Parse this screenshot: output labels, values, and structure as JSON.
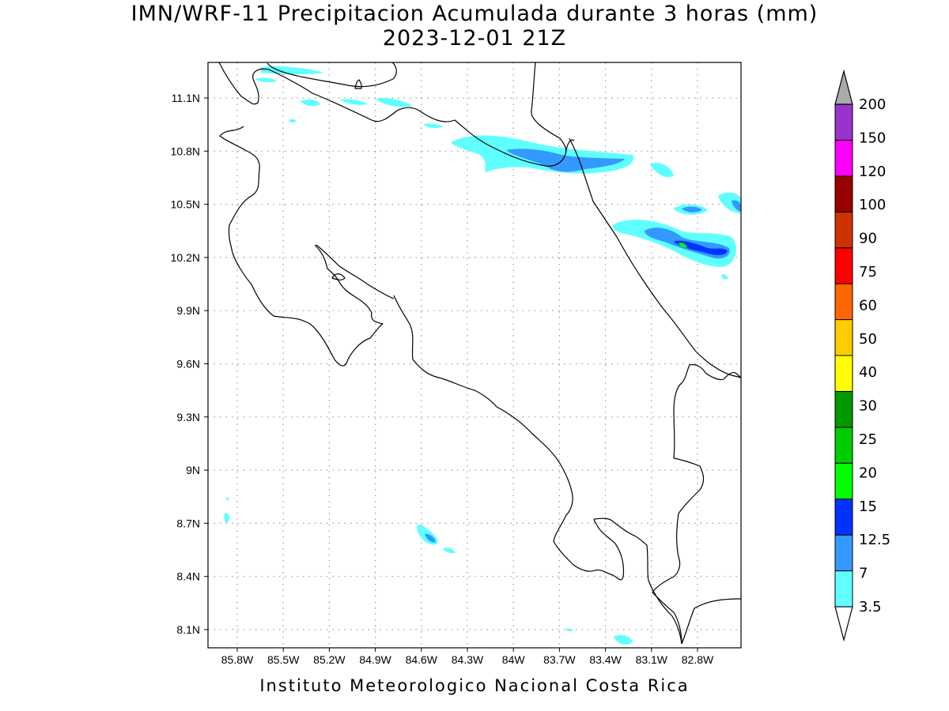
{
  "title_line1": "IMN/WRF-11 Precipitacion Acumulada durante 3 horas (mm)",
  "title_line2": "2023-12-01 21Z",
  "footer": "Instituto Meteorologico Nacional Costa Rica",
  "map": {
    "lon_range": [
      -86.0,
      -83.0
    ],
    "lat_range": [
      8.0,
      11.3
    ],
    "lon_ticks": [
      {
        "value": -85.8,
        "label": "85.8W"
      },
      {
        "value": -85.5,
        "label": "85.5W"
      },
      {
        "value": -85.2,
        "label": "85.2W"
      },
      {
        "value": -84.9,
        "label": "84.9W"
      },
      {
        "value": -84.6,
        "label": "84.6W"
      },
      {
        "value": -84.3,
        "label": "84.3W"
      },
      {
        "value": -84.0,
        "label": "84W"
      },
      {
        "value": -83.7,
        "label": "83.7W"
      },
      {
        "value": -83.4,
        "label": "83.4W"
      },
      {
        "value": -83.1,
        "label": "83.1W"
      },
      {
        "value": -82.8,
        "label": "82.8W"
      }
    ],
    "lat_ticks": [
      {
        "value": 11.1,
        "label": "11.1N"
      },
      {
        "value": 10.8,
        "label": "10.8N"
      },
      {
        "value": 10.5,
        "label": "10.5N"
      },
      {
        "value": 10.2,
        "label": "10.2N"
      },
      {
        "value": 9.9,
        "label": "9.9N"
      },
      {
        "value": 9.6,
        "label": "9.6N"
      },
      {
        "value": 9.3,
        "label": "9.3N"
      },
      {
        "value": 9.0,
        "label": "9N"
      },
      {
        "value": 8.7,
        "label": "8.7N"
      },
      {
        "value": 8.4,
        "label": "8.4N"
      },
      {
        "value": 8.1,
        "label": "8.1N"
      }
    ],
    "grid": true
  },
  "colorbar": {
    "unit": "mm",
    "levels": [
      {
        "label": "3.5",
        "color": "#5fffff"
      },
      {
        "label": "7",
        "color": "#3399ff"
      },
      {
        "label": "12.5",
        "color": "#0033ff"
      },
      {
        "label": "15",
        "color": "#00ff00"
      },
      {
        "label": "20",
        "color": "#00cc00"
      },
      {
        "label": "25",
        "color": "#009900"
      },
      {
        "label": "30",
        "color": "#ffff00"
      },
      {
        "label": "40",
        "color": "#ffcc00"
      },
      {
        "label": "50",
        "color": "#ff6600"
      },
      {
        "label": "60",
        "color": "#ff0000"
      },
      {
        "label": "75",
        "color": "#cc3300"
      },
      {
        "label": "90",
        "color": "#990000"
      },
      {
        "label": "100",
        "color": "#ff00ff"
      },
      {
        "label": "120",
        "color": "#9933cc"
      },
      {
        "label": "150",
        "color": "#f2f2f2"
      },
      {
        "label": "200",
        "color": "#aaaaaa"
      }
    ]
  }
}
